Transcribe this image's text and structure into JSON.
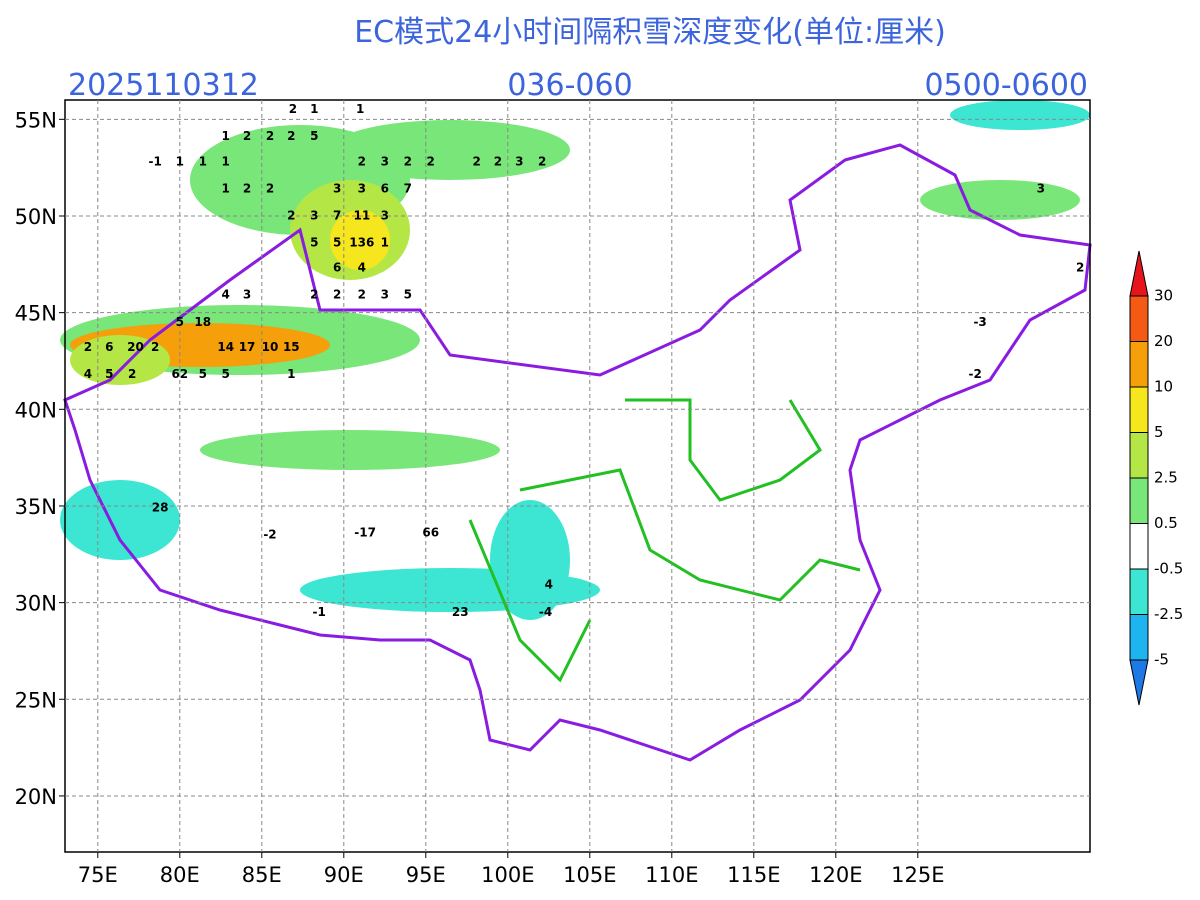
{
  "header": {
    "title": "EC模式24小时间隔积雪深度变化(单位:厘米)",
    "init": "2025110312",
    "range": "036-060",
    "valid": "0500-0600"
  },
  "map": {
    "lonlim": [
      73,
      135.5
    ],
    "latlim": [
      17.1,
      56
    ],
    "grid": true,
    "xticks": [
      {
        "value": 75,
        "label": "75E"
      },
      {
        "value": 80,
        "label": "80E"
      },
      {
        "value": 85,
        "label": "85E"
      },
      {
        "value": 90,
        "label": "90E"
      },
      {
        "value": 95,
        "label": "95E"
      },
      {
        "value": 100,
        "label": "100E"
      },
      {
        "value": 105,
        "label": "105E"
      },
      {
        "value": 110,
        "label": "110E"
      },
      {
        "value": 115,
        "label": "115E"
      },
      {
        "value": 120,
        "label": "120E"
      },
      {
        "value": 125,
        "label": "125E"
      }
    ],
    "yticks": [
      {
        "value": 20,
        "label": "20N"
      },
      {
        "value": 25,
        "label": "25N"
      },
      {
        "value": 30,
        "label": "30N"
      },
      {
        "value": 35,
        "label": "35N"
      },
      {
        "value": 40,
        "label": "40N"
      },
      {
        "value": 45,
        "label": "45N"
      },
      {
        "value": 50,
        "label": "50N"
      },
      {
        "value": 55,
        "label": "55N"
      }
    ]
  },
  "colorbar": {
    "levels": [
      30,
      20,
      10,
      5,
      2.5,
      0.5,
      -0.5,
      -2.5,
      -5
    ],
    "colors": [
      "#e8141c",
      "#f55a14",
      "#f5a00a",
      "#f5e61e",
      "#b4e646",
      "#78e678",
      "#ffffff",
      "#3ce6d2",
      "#1eb4f0",
      "#1e78e6"
    ]
  },
  "labels": [
    {
      "lon": 86.9,
      "lat": 55.5,
      "text": "2"
    },
    {
      "lon": 88.2,
      "lat": 55.5,
      "text": "1"
    },
    {
      "lon": 91.0,
      "lat": 55.5,
      "text": "1"
    },
    {
      "lon": 82.8,
      "lat": 54.1,
      "text": "1"
    },
    {
      "lon": 84.1,
      "lat": 54.1,
      "text": "2"
    },
    {
      "lon": 85.5,
      "lat": 54.1,
      "text": "2"
    },
    {
      "lon": 86.8,
      "lat": 54.1,
      "text": "2"
    },
    {
      "lon": 88.2,
      "lat": 54.1,
      "text": "5"
    },
    {
      "lon": 78.5,
      "lat": 52.8,
      "text": "-1"
    },
    {
      "lon": 80.0,
      "lat": 52.8,
      "text": "1"
    },
    {
      "lon": 81.4,
      "lat": 52.8,
      "text": "1"
    },
    {
      "lon": 82.8,
      "lat": 52.8,
      "text": "1"
    },
    {
      "lon": 91.1,
      "lat": 52.8,
      "text": "2"
    },
    {
      "lon": 92.5,
      "lat": 52.8,
      "text": "3"
    },
    {
      "lon": 93.9,
      "lat": 52.8,
      "text": "2"
    },
    {
      "lon": 95.3,
      "lat": 52.8,
      "text": "2"
    },
    {
      "lon": 98.1,
      "lat": 52.8,
      "text": "2"
    },
    {
      "lon": 99.4,
      "lat": 52.8,
      "text": "2"
    },
    {
      "lon": 100.7,
      "lat": 52.8,
      "text": "3"
    },
    {
      "lon": 102.1,
      "lat": 52.8,
      "text": "2"
    },
    {
      "lon": 82.8,
      "lat": 51.4,
      "text": "1"
    },
    {
      "lon": 84.1,
      "lat": 51.4,
      "text": "2"
    },
    {
      "lon": 85.5,
      "lat": 51.4,
      "text": "2"
    },
    {
      "lon": 89.6,
      "lat": 51.4,
      "text": "3"
    },
    {
      "lon": 91.1,
      "lat": 51.4,
      "text": "3"
    },
    {
      "lon": 92.5,
      "lat": 51.4,
      "text": "6"
    },
    {
      "lon": 93.9,
      "lat": 51.4,
      "text": "7"
    },
    {
      "lon": 86.8,
      "lat": 50.0,
      "text": "2"
    },
    {
      "lon": 88.2,
      "lat": 50.0,
      "text": "3"
    },
    {
      "lon": 89.6,
      "lat": 50.0,
      "text": "7"
    },
    {
      "lon": 91.1,
      "lat": 50.0,
      "text": "11"
    },
    {
      "lon": 92.5,
      "lat": 50.0,
      "text": "3"
    },
    {
      "lon": 88.2,
      "lat": 48.6,
      "text": "5"
    },
    {
      "lon": 89.6,
      "lat": 48.6,
      "text": "5"
    },
    {
      "lon": 91.1,
      "lat": 48.6,
      "text": "136"
    },
    {
      "lon": 92.5,
      "lat": 48.6,
      "text": "1"
    },
    {
      "lon": 89.6,
      "lat": 47.3,
      "text": "6"
    },
    {
      "lon": 91.1,
      "lat": 47.3,
      "text": "4"
    },
    {
      "lon": 82.8,
      "lat": 45.9,
      "text": "4"
    },
    {
      "lon": 84.1,
      "lat": 45.9,
      "text": "3"
    },
    {
      "lon": 88.2,
      "lat": 45.9,
      "text": "2"
    },
    {
      "lon": 89.6,
      "lat": 45.9,
      "text": "2"
    },
    {
      "lon": 91.1,
      "lat": 45.9,
      "text": "2"
    },
    {
      "lon": 92.5,
      "lat": 45.9,
      "text": "3"
    },
    {
      "lon": 93.9,
      "lat": 45.9,
      "text": "5"
    },
    {
      "lon": 80.0,
      "lat": 44.5,
      "text": "5"
    },
    {
      "lon": 81.4,
      "lat": 44.5,
      "text": "18"
    },
    {
      "lon": 74.4,
      "lat": 43.2,
      "text": "2"
    },
    {
      "lon": 75.7,
      "lat": 43.2,
      "text": "6"
    },
    {
      "lon": 77.3,
      "lat": 43.2,
      "text": "20"
    },
    {
      "lon": 78.5,
      "lat": 43.2,
      "text": "2"
    },
    {
      "lon": 82.8,
      "lat": 43.2,
      "text": "14"
    },
    {
      "lon": 84.1,
      "lat": 43.2,
      "text": "17"
    },
    {
      "lon": 85.5,
      "lat": 43.2,
      "text": "10"
    },
    {
      "lon": 86.8,
      "lat": 43.2,
      "text": "15"
    },
    {
      "lon": 74.4,
      "lat": 41.8,
      "text": "4"
    },
    {
      "lon": 75.7,
      "lat": 41.8,
      "text": "5"
    },
    {
      "lon": 77.1,
      "lat": 41.8,
      "text": "2"
    },
    {
      "lon": 80.0,
      "lat": 41.8,
      "text": "62"
    },
    {
      "lon": 81.4,
      "lat": 41.8,
      "text": "5"
    },
    {
      "lon": 82.8,
      "lat": 41.8,
      "text": "5"
    },
    {
      "lon": 86.8,
      "lat": 41.8,
      "text": "1"
    },
    {
      "lon": 78.8,
      "lat": 34.9,
      "text": "28"
    },
    {
      "lon": 95.3,
      "lat": 33.6,
      "text": "66"
    },
    {
      "lon": 85.5,
      "lat": 33.5,
      "text": "-2"
    },
    {
      "lon": 91.3,
      "lat": 33.6,
      "text": "-17"
    },
    {
      "lon": 97.1,
      "lat": 29.5,
      "text": "23"
    },
    {
      "lon": 88.5,
      "lat": 29.5,
      "text": "-1"
    },
    {
      "lon": 102.3,
      "lat": 29.5,
      "text": "-4"
    },
    {
      "lon": 102.5,
      "lat": 30.9,
      "text": "4"
    },
    {
      "lon": 132.5,
      "lat": 51.4,
      "text": "3"
    },
    {
      "lon": 128.8,
      "lat": 44.5,
      "text": "-3"
    },
    {
      "lon": 128.5,
      "lat": 41.8,
      "text": "-2"
    },
    {
      "lon": 134.9,
      "lat": 47.3,
      "text": "2"
    }
  ]
}
